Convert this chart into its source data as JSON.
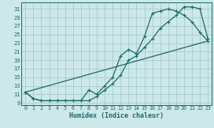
{
  "xlabel": "Humidex (Indice chaleur)",
  "bg_color": "#cce8e8",
  "grid_color": "#aacccc",
  "line_color": "#1a6b6b",
  "xlim": [
    -0.5,
    23.5
  ],
  "ylim": [
    8.5,
    32.5
  ],
  "xticks": [
    0,
    1,
    2,
    3,
    4,
    5,
    6,
    7,
    8,
    9,
    10,
    11,
    12,
    13,
    14,
    15,
    16,
    17,
    18,
    19,
    20,
    21,
    22,
    23
  ],
  "yticks": [
    9,
    11,
    13,
    15,
    17,
    19,
    21,
    23,
    25,
    27,
    29,
    31
  ],
  "line1_x": [
    0,
    1,
    2,
    3,
    4,
    5,
    6,
    7,
    8,
    9,
    10,
    11,
    12,
    13,
    14,
    15,
    16,
    17,
    18,
    19,
    20,
    21,
    22,
    23
  ],
  "line1_y": [
    11.5,
    10.0,
    9.5,
    9.5,
    9.5,
    9.5,
    9.5,
    9.5,
    9.5,
    10.5,
    12.0,
    13.5,
    15.5,
    19.0,
    20.0,
    22.0,
    24.0,
    26.5,
    28.0,
    29.5,
    31.5,
    31.5,
    31.0,
    24.0
  ],
  "line2_x": [
    0,
    1,
    2,
    3,
    4,
    5,
    6,
    7,
    8,
    9,
    10,
    11,
    12,
    13,
    14,
    15,
    16,
    17,
    18,
    19,
    20,
    21,
    22,
    23
  ],
  "line2_y": [
    11.5,
    10.0,
    9.5,
    9.5,
    9.5,
    9.5,
    9.5,
    9.5,
    12.0,
    11.0,
    13.0,
    15.0,
    20.0,
    21.5,
    20.5,
    24.5,
    30.0,
    30.5,
    31.0,
    30.5,
    29.5,
    28.0,
    25.5,
    23.5
  ],
  "line3_x": [
    0,
    23
  ],
  "line3_y": [
    11.5,
    23.5
  ],
  "marker_size": 2.5,
  "line_width": 0.9
}
